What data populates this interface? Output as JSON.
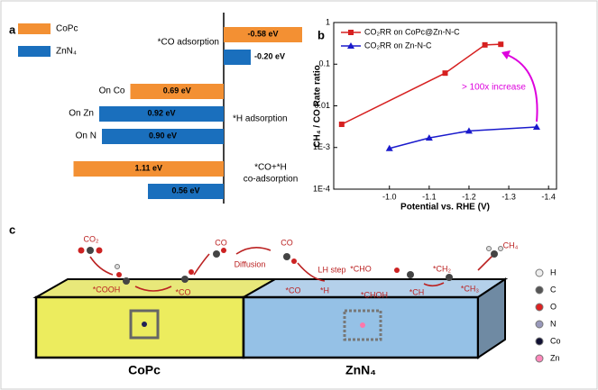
{
  "chart_data": [
    {
      "type": "bar",
      "orientation": "horizontal",
      "panel": "a",
      "categories": [
        null,
        null,
        "On Co",
        "On Zn",
        "On N",
        null,
        null
      ],
      "values": [
        -0.58,
        -0.2,
        0.69,
        0.92,
        0.9,
        1.11,
        0.56
      ],
      "value_labels": [
        "-0.58 eV",
        "-0.20 eV",
        "0.69 eV",
        "0.92 eV",
        "0.90 eV",
        "1.11 eV",
        "0.56 eV"
      ],
      "colors": [
        "#f39033",
        "#1a6fbd",
        "#f39033",
        "#1a6fbd",
        "#1a6fbd",
        "#f39033",
        "#1a6fbd"
      ],
      "legend": [
        {
          "name": "CoPc",
          "color": "#f39033"
        },
        {
          "name": "ZnN₄",
          "color": "#1a6fbd"
        }
      ],
      "annotations": [
        "*CO adsorption",
        "*H adsorption",
        "*CO+*H",
        "co-adsorption"
      ],
      "xlim": [
        1.12,
        -0.62
      ]
    },
    {
      "type": "line",
      "panel": "b",
      "xlabel": "Potential vs. RHE (V)",
      "ylabel": "CH₄ / CO Rate ratio",
      "log_y": true,
      "xlim": [
        -0.86,
        -1.42
      ],
      "ylim": [
        0.0001,
        1
      ],
      "xticks": [
        {
          "value": -1.0,
          "label": "-1.0"
        },
        -1.1,
        -1.2,
        -1.3,
        -1.4
      ],
      "yticks": [
        {
          "value": 0.0001,
          "label": "1E-4"
        },
        {
          "value": 0.001,
          "label": "1E-3"
        },
        0.01,
        0.1,
        1
      ],
      "series": [
        {
          "name": "CO₂RR on CoPc@Zn-N-C",
          "color": "#d62020",
          "marker": "square",
          "x": [
            -0.88,
            -1.14,
            -1.24,
            -1.28
          ],
          "values": [
            0.0036,
            0.061,
            0.29,
            0.3
          ]
        },
        {
          "name": "CO₂RR on Zn-N-C",
          "color": "#1a1acc",
          "marker": "triangle",
          "x": [
            -1.0,
            -1.1,
            -1.2,
            -1.37
          ],
          "values": [
            0.00095,
            0.0017,
            0.0025,
            0.0031
          ]
        }
      ],
      "annotation": "> 100x increase"
    }
  ],
  "diagram": {
    "panel": "c",
    "labels": [
      "CO₂",
      "*COOH",
      "*CO",
      "CO",
      "Diffusion",
      "CO",
      "LH step",
      "*CHO",
      "*CO",
      "*H",
      "*CHOH",
      "*CH",
      "*CH₂",
      "*CH₃",
      "CH₄"
    ],
    "atom_legend": [
      "H",
      "C",
      "O",
      "N",
      "Co",
      "Zn"
    ],
    "substrates": [
      "CoPc",
      "ZnN₄"
    ]
  }
}
